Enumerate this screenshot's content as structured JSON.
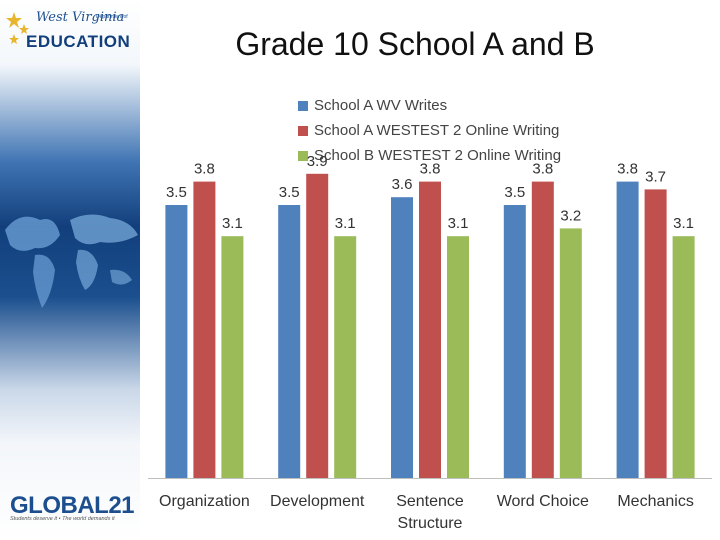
{
  "sidebar": {
    "wv_logo": {
      "line1": "West Virginia",
      "dept": "Department of",
      "edu": "EDUCATION"
    },
    "global_logo": {
      "name": "GLOBAL21",
      "tagline": "Students deserve it • The world demands it"
    }
  },
  "chart_data": {
    "type": "bar",
    "title": "Grade 10 School A and B",
    "xlabel": "",
    "ylabel": "",
    "categories": [
      "Organization",
      "Development",
      "Sentence Structure",
      "Word Choice",
      "Mechanics"
    ],
    "series": [
      {
        "name": "School A WV Writes",
        "color": "#4f81bd",
        "values": [
          3.5,
          3.5,
          3.6,
          3.5,
          3.8
        ]
      },
      {
        "name": "School A WESTEST 2 Online Writing",
        "color": "#c0504d",
        "values": [
          3.8,
          3.9,
          3.8,
          3.8,
          3.7
        ]
      },
      {
        "name": "School B WESTEST 2 Online Writing",
        "color": "#9bbb59",
        "values": [
          3.1,
          3.1,
          3.1,
          3.2,
          3.1
        ]
      }
    ],
    "ylim": [
      0,
      4
    ],
    "grid": false,
    "legend": "top"
  }
}
